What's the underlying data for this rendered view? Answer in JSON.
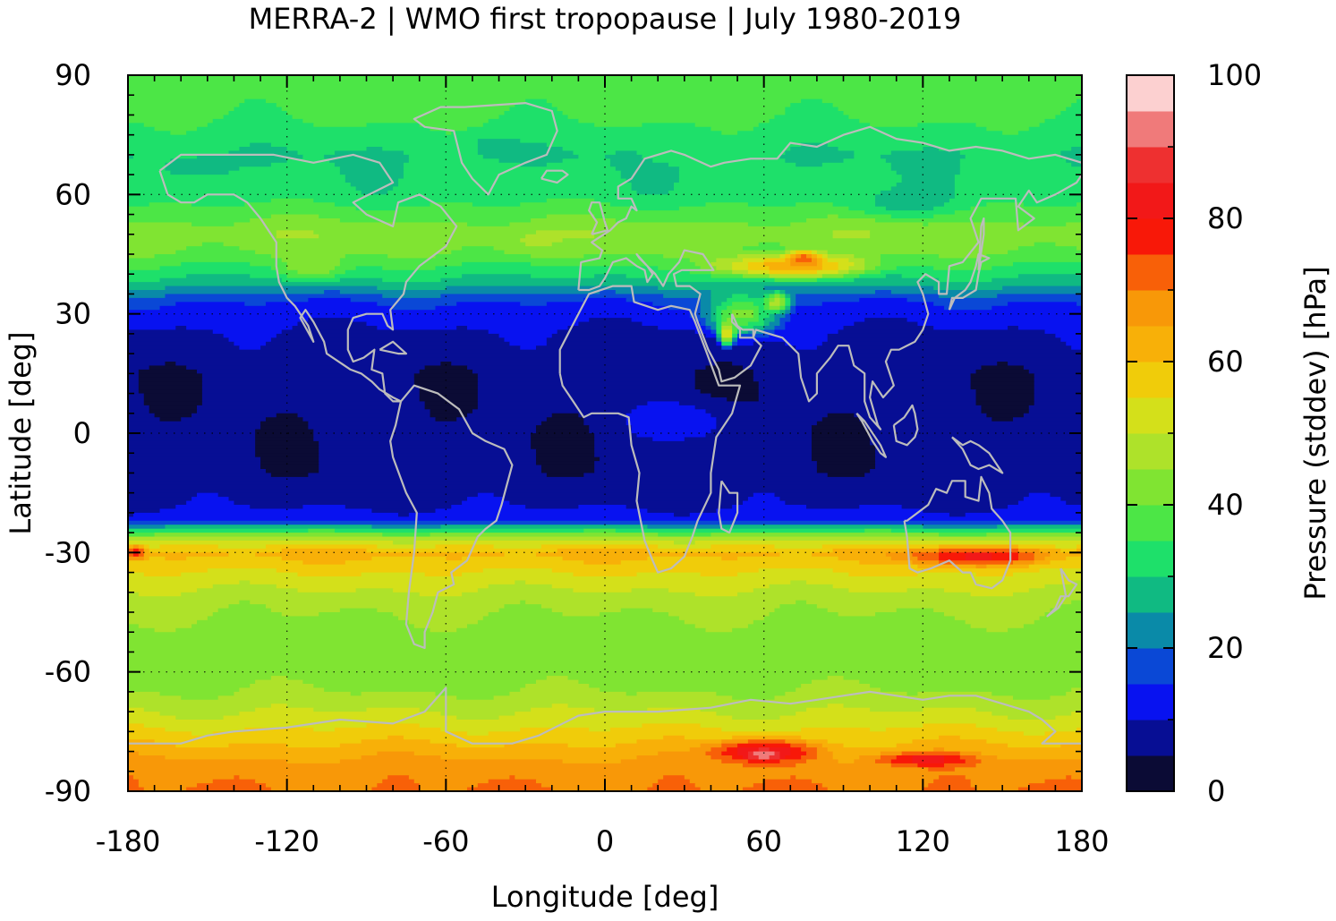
{
  "chart_data": {
    "type": "heatmap",
    "title": "MERRA-2 | WMO first tropopause | July 1980-2019",
    "xlabel": "Longitude [deg]",
    "ylabel": "Latitude [deg]",
    "xlim": [
      -180,
      180
    ],
    "ylim": [
      -90,
      90
    ],
    "xticks": [
      "-180",
      "-120",
      "-60",
      "0",
      "60",
      "120",
      "180"
    ],
    "yticks": [
      "90",
      "60",
      "30",
      "0",
      "-30",
      "-60",
      "-90"
    ],
    "grid": true,
    "colorbar": {
      "label": "Pressure (stddev) [hPa]",
      "range": [
        0,
        100
      ],
      "ticks": [
        "100",
        "80",
        "60",
        "40",
        "20",
        "0"
      ],
      "step": 5,
      "colors": [
        "#0b0b35",
        "#070e94",
        "#0812f0",
        "#0a48d6",
        "#0a8aa8",
        "#10ba82",
        "#1ee06a",
        "#4ce646",
        "#80e432",
        "#aee22a",
        "#d4e01a",
        "#f0cc0a",
        "#f8b008",
        "#f89808",
        "#f86008",
        "#f81808",
        "#f21818",
        "#ee3030",
        "#f07a7a",
        "#fcd0d0"
      ]
    },
    "bands": [
      {
        "lat": 90,
        "value": 38
      },
      {
        "lat": 80,
        "value": 36
      },
      {
        "lat": 70,
        "value": 30
      },
      {
        "lat": 60,
        "value": 32
      },
      {
        "lat": 50,
        "value": 44
      },
      {
        "lat": 45,
        "value": 40
      },
      {
        "lat": 38,
        "value": 28
      },
      {
        "lat": 33,
        "value": 15
      },
      {
        "lat": 25,
        "value": 9
      },
      {
        "lat": 15,
        "value": 6
      },
      {
        "lat": 5,
        "value": 6
      },
      {
        "lat": -10,
        "value": 6
      },
      {
        "lat": -18,
        "value": 9
      },
      {
        "lat": -22,
        "value": 14
      },
      {
        "lat": -26,
        "value": 45
      },
      {
        "lat": -30,
        "value": 62
      },
      {
        "lat": -35,
        "value": 55
      },
      {
        "lat": -42,
        "value": 47
      },
      {
        "lat": -50,
        "value": 43
      },
      {
        "lat": -60,
        "value": 42
      },
      {
        "lat": -65,
        "value": 45
      },
      {
        "lat": -72,
        "value": 52
      },
      {
        "lat": -78,
        "value": 60
      },
      {
        "lat": -84,
        "value": 68
      },
      {
        "lat": -90,
        "value": 70
      }
    ],
    "features": [
      {
        "lon": 70,
        "lat": 42,
        "rlon": 45,
        "rlat": 5,
        "value": 66
      },
      {
        "lon": 75,
        "lat": 44,
        "rlon": 10,
        "rlat": 3,
        "value": 74
      },
      {
        "lon": 52,
        "lat": 30,
        "rlon": 22,
        "rlat": 9,
        "value": 42
      },
      {
        "lon": 46,
        "lat": 25,
        "rlon": 5,
        "rlat": 5,
        "value": 58
      },
      {
        "lon": 65,
        "lat": 33,
        "rlon": 8,
        "rlat": 4,
        "value": 50
      },
      {
        "lon": 30,
        "lat": 3,
        "rlon": 35,
        "rlat": 9,
        "value": 13
      },
      {
        "lon": 140,
        "lat": -31,
        "rlon": 42,
        "rlat": 4,
        "value": 82
      },
      {
        "lon": -177,
        "lat": -30,
        "rlon": 6,
        "rlat": 3,
        "value": 78
      },
      {
        "lon": 60,
        "lat": -80,
        "rlon": 32,
        "rlat": 5,
        "value": 86
      },
      {
        "lon": 60,
        "lat": -81,
        "rlon": 10,
        "rlat": 2,
        "value": 94
      },
      {
        "lon": 120,
        "lat": -82,
        "rlon": 30,
        "rlat": 3,
        "value": 82
      },
      {
        "lon": -155,
        "lat": 67,
        "rlon": 20,
        "rlat": 4,
        "value": 24
      },
      {
        "lon": -45,
        "lat": 72,
        "rlon": 18,
        "rlat": 6,
        "value": 28
      },
      {
        "lon": 110,
        "lat": 58,
        "rlon": 35,
        "rlat": 6,
        "value": 28
      },
      {
        "lon": 30,
        "lat": 70,
        "rlon": 25,
        "rlat": 4,
        "value": 34
      },
      {
        "lon": -110,
        "lat": 42,
        "rlon": 20,
        "rlat": 6,
        "value": 44
      },
      {
        "lon": -30,
        "lat": 48,
        "rlon": 20,
        "rlat": 5,
        "value": 46
      }
    ]
  }
}
